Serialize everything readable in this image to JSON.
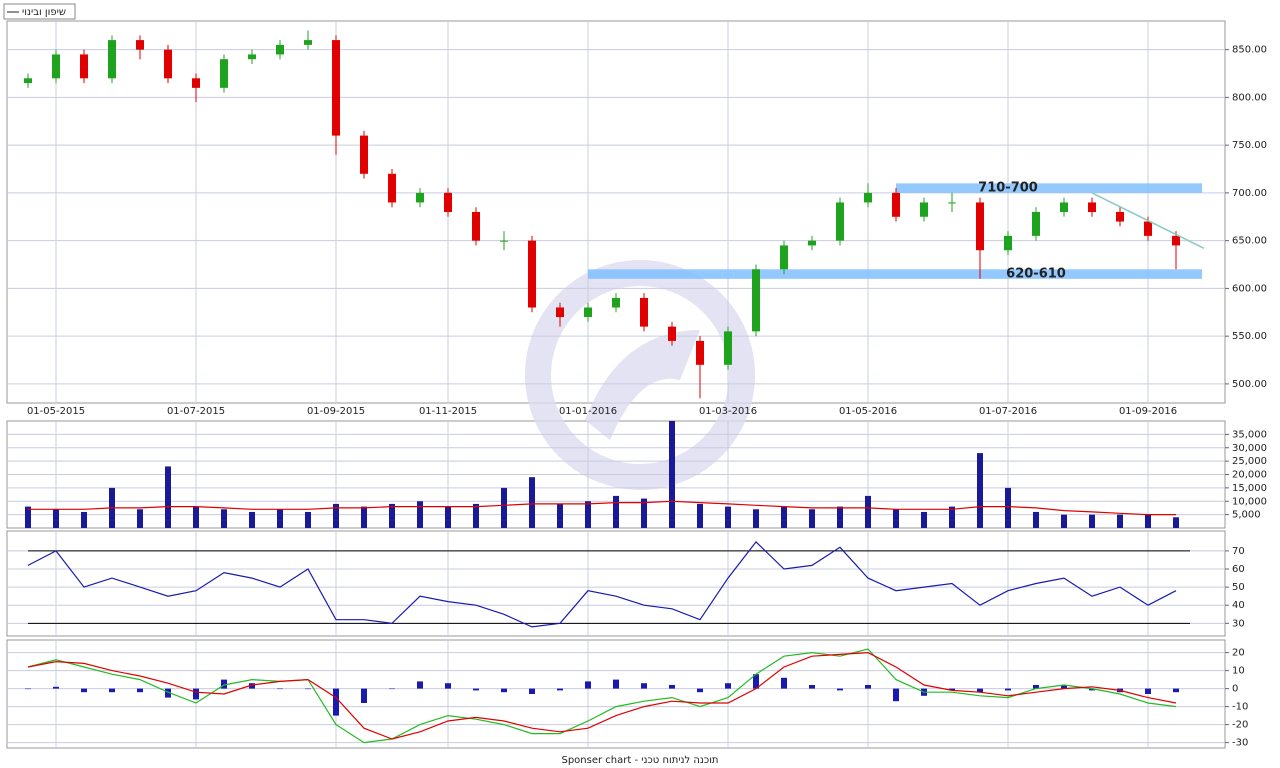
{
  "footer": "Sponser chart - תוכנה לניתוח טכני",
  "chart_data": [
    {
      "type": "candlestick",
      "name": "שיפון ובינוי",
      "categories": [
        null,
        "01-05-2015",
        null,
        null,
        null,
        null,
        "01-07-2015",
        null,
        null,
        null,
        null,
        "01-09-2015",
        null,
        null,
        null,
        "01-11-2015",
        null,
        null,
        null,
        null,
        "01-01-2016",
        null,
        null,
        null,
        null,
        "01-03-2016",
        null,
        null,
        null,
        null,
        "01-05-2016",
        null,
        null,
        null,
        null,
        "01-07-2016",
        null,
        null,
        null,
        null,
        "01-09-2016",
        null
      ],
      "open": [
        815,
        820,
        845,
        820,
        860,
        850,
        820,
        810,
        840,
        845,
        855,
        860,
        760,
        720,
        690,
        700,
        680,
        650,
        650,
        580,
        570,
        580,
        590,
        560,
        545,
        520,
        555,
        620,
        645,
        650,
        690,
        700,
        675,
        690,
        690,
        640,
        655,
        680,
        690,
        680,
        670,
        655
      ],
      "high": [
        825,
        850,
        850,
        865,
        865,
        855,
        825,
        845,
        850,
        860,
        870,
        865,
        765,
        725,
        705,
        705,
        685,
        660,
        655,
        585,
        585,
        595,
        595,
        565,
        550,
        560,
        625,
        650,
        655,
        695,
        710,
        705,
        695,
        700,
        695,
        660,
        685,
        695,
        695,
        685,
        675,
        660
      ],
      "low": [
        810,
        815,
        815,
        815,
        840,
        815,
        795,
        805,
        835,
        840,
        850,
        740,
        715,
        685,
        685,
        675,
        645,
        640,
        575,
        560,
        565,
        575,
        555,
        540,
        485,
        515,
        550,
        615,
        640,
        645,
        685,
        670,
        670,
        680,
        610,
        635,
        650,
        675,
        675,
        665,
        650,
        620
      ],
      "close": [
        820,
        845,
        820,
        860,
        850,
        820,
        810,
        840,
        845,
        855,
        860,
        760,
        720,
        690,
        700,
        680,
        650,
        650,
        580,
        570,
        580,
        590,
        560,
        545,
        520,
        555,
        620,
        645,
        650,
        690,
        700,
        675,
        690,
        690,
        640,
        655,
        680,
        690,
        680,
        670,
        655,
        645
      ],
      "up_color": "#1fa31f",
      "down_color": "#e00000",
      "ylim": [
        480,
        880
      ],
      "yticks": [
        {
          "value": 500,
          "label": "500.00"
        },
        {
          "value": 550,
          "label": "550.00"
        },
        {
          "value": 600,
          "label": "600.00"
        },
        {
          "value": 650,
          "label": "650.00"
        },
        {
          "value": 700,
          "label": "700.00"
        },
        {
          "value": 750,
          "label": "750.00"
        },
        {
          "value": 800,
          "label": "800.00"
        },
        {
          "value": 850,
          "label": "850.00"
        }
      ],
      "grid": true,
      "zones": [
        {
          "range": [
            700,
            710
          ],
          "start": 31,
          "label": "710-700",
          "label_at": 35,
          "color": "#80c0ff"
        },
        {
          "range": [
            610,
            620
          ],
          "start": 20,
          "label": "620-610",
          "label_at": 36,
          "color": "#80c0ff"
        }
      ],
      "trendline": {
        "x": [
          38,
          42
        ],
        "y": [
          700,
          642
        ],
        "color": "#8cc8c8"
      }
    },
    {
      "type": "bar",
      "series": [
        {
          "type": "bar",
          "color": "#1a1a99",
          "values": [
            8000,
            7000,
            6000,
            15000,
            7000,
            23000,
            8000,
            7000,
            6000,
            7000,
            6000,
            9000,
            8000,
            9000,
            10000,
            8000,
            9000,
            15000,
            19000,
            9000,
            10000,
            12000,
            11000,
            40000,
            9000,
            8000,
            7000,
            8000,
            7000,
            8000,
            12000,
            7000,
            6000,
            8000,
            28000,
            15000,
            6000,
            5000,
            5000,
            5000,
            5000,
            4000
          ]
        },
        {
          "type": "line",
          "color": "#e00000",
          "values": [
            7000,
            7000,
            7000,
            7500,
            7500,
            8000,
            8000,
            7500,
            7000,
            7000,
            7000,
            7500,
            7500,
            8000,
            8000,
            8000,
            8000,
            8500,
            9000,
            9000,
            9000,
            9500,
            9500,
            10000,
            9500,
            9000,
            8500,
            8000,
            7500,
            7500,
            7500,
            7000,
            7000,
            7000,
            8000,
            8000,
            7500,
            6500,
            6000,
            5500,
            5000,
            5000
          ]
        }
      ],
      "ylim": [
        0,
        40000
      ],
      "yticks": [
        {
          "value": 5000,
          "label": "5,000"
        },
        {
          "value": 10000,
          "label": "10,000"
        },
        {
          "value": 15000,
          "label": "15,000"
        },
        {
          "value": 20000,
          "label": "20,000"
        },
        {
          "value": 25000,
          "label": "25,000"
        },
        {
          "value": 30000,
          "label": "30,000"
        },
        {
          "value": 35000,
          "label": "35,000"
        }
      ],
      "grid": true
    },
    {
      "type": "line",
      "series": [
        {
          "type": "line",
          "color": "#1a1ab0",
          "values": [
            62,
            70,
            50,
            55,
            50,
            45,
            48,
            58,
            55,
            50,
            60,
            32,
            32,
            30,
            45,
            42,
            40,
            35,
            28,
            30,
            48,
            45,
            40,
            38,
            32,
            55,
            75,
            60,
            62,
            72,
            55,
            48,
            50,
            52,
            40,
            48,
            52,
            55,
            45,
            50,
            40,
            48
          ]
        }
      ],
      "levels": [
        30,
        70
      ],
      "ylim": [
        23,
        81
      ],
      "yticks": [
        30,
        40,
        50,
        60,
        70
      ],
      "grid": true
    },
    {
      "type": "line",
      "series": [
        {
          "type": "bar",
          "color": "#1a1ab0",
          "values": [
            0,
            1,
            -2,
            -2,
            -2,
            -5,
            -6,
            5,
            3,
            0,
            0,
            -15,
            -8,
            0,
            4,
            3,
            -1,
            -2,
            -3,
            -1,
            4,
            5,
            3,
            2,
            -2,
            3,
            8,
            6,
            2,
            -1,
            2,
            -7,
            -4,
            -1,
            -2,
            -1,
            2,
            2,
            -1,
            -2,
            -3,
            -2
          ]
        },
        {
          "type": "line",
          "color": "#22bb22",
          "values": [
            12,
            16,
            12,
            8,
            5,
            -2,
            -8,
            2,
            5,
            4,
            5,
            -20,
            -30,
            -28,
            -20,
            -15,
            -17,
            -20,
            -25,
            -25,
            -18,
            -10,
            -7,
            -5,
            -10,
            -5,
            8,
            18,
            20,
            18,
            22,
            5,
            -2,
            -2,
            -4,
            -5,
            0,
            2,
            0,
            -3,
            -8,
            -10
          ]
        },
        {
          "type": "line",
          "color": "#e00000",
          "values": [
            12,
            15,
            14,
            10,
            7,
            3,
            -2,
            -3,
            2,
            4,
            5,
            -5,
            -22,
            -28,
            -24,
            -18,
            -16,
            -18,
            -22,
            -24,
            -22,
            -15,
            -10,
            -7,
            -8,
            -8,
            0,
            12,
            18,
            19,
            20,
            12,
            2,
            -1,
            -2,
            -4,
            -2,
            0,
            1,
            -1,
            -5,
            -8
          ]
        }
      ],
      "ylim": [
        -33,
        27
      ],
      "yticks": [
        -30,
        -20,
        -10,
        0,
        10,
        20
      ],
      "grid": true
    }
  ]
}
